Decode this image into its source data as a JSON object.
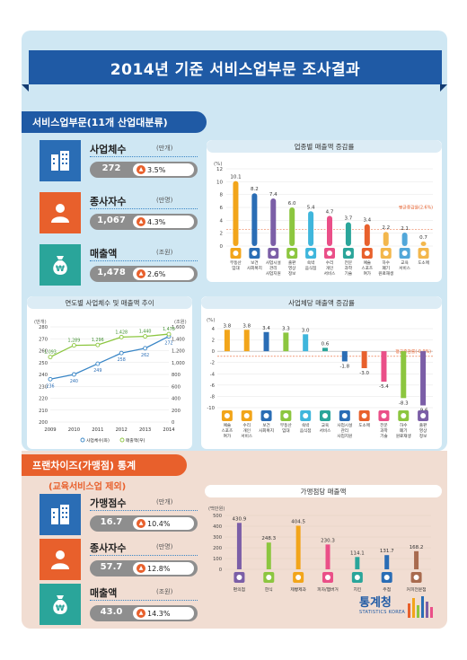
{
  "header": {
    "title": "2014년 기준 서비스업부문 조사결과"
  },
  "service_section": {
    "tab": "서비스업부문(11개 산업대분류)",
    "stats": [
      {
        "name": "사업체수",
        "unit": "(만개)",
        "value": "272",
        "change": "3.5%",
        "icon": "building-icon",
        "color": "#2a6db5"
      },
      {
        "name": "종사자수",
        "unit": "(만명)",
        "value": "1,067",
        "change": "4.3%",
        "icon": "person-icon",
        "color": "#e8602c"
      },
      {
        "name": "매출액",
        "unit": "(조원)",
        "value": "1,478",
        "change": "2.6%",
        "icon": "money-bag-icon",
        "color": "#2aa59a"
      }
    ]
  },
  "franchise_section": {
    "tab": "프랜차이즈(가맹점) 통계",
    "note": "(교육서비스업 제외)",
    "stats": [
      {
        "name": "가맹점수",
        "unit": "(만개)",
        "value": "16.7",
        "change": "10.4%",
        "icon": "building-icon",
        "color": "#2a6db5"
      },
      {
        "name": "종사자수",
        "unit": "(만명)",
        "value": "57.7",
        "change": "12.8%",
        "icon": "person-icon",
        "color": "#e8602c"
      },
      {
        "name": "매출액",
        "unit": "(조원)",
        "value": "43.0",
        "change": "14.3%",
        "icon": "money-bag-icon",
        "color": "#2aa59a"
      }
    ]
  },
  "brand": {
    "name": "통계청",
    "sub": "STATISTICS KOREA"
  },
  "chart_data": [
    {
      "type": "bar",
      "title": "업종별 매출액 증감률",
      "ylabel": "(%)",
      "ylim": [
        0,
        12
      ],
      "yticks": [
        0,
        2,
        4,
        6,
        8,
        10,
        12
      ],
      "categories": [
        "부동산 임대",
        "보건 사회복지",
        "사업시설 관리 사업지원",
        "출판 영상 정보",
        "숙박 음식점",
        "수리 개인 서비스",
        "전문 과학 기술",
        "예술 스포츠 여가",
        "하수 폐기 원료재생",
        "교육 서비스",
        "도소매"
      ],
      "values": [
        10.1,
        8.2,
        7.4,
        6.0,
        5.4,
        4.7,
        3.7,
        3.4,
        2.2,
        2.1,
        0.7
      ],
      "value_labels": [
        "10.1",
        "8.2",
        "7.4",
        "6.0",
        "5.4",
        "4.7",
        "3.7",
        "3.4",
        "2.2",
        "2.1",
        "0.7"
      ],
      "annotation": "평균증감률(2.6%)",
      "average": 2.6
    },
    {
      "type": "line",
      "title": "연도별 사업체수 및 매출액 추이",
      "x": [
        "2009",
        "2010",
        "2011",
        "2012",
        "2013",
        "2014"
      ],
      "y_left_label": "(만개)",
      "y_right_label": "(조원)",
      "y_left_lim": [
        200,
        280
      ],
      "y_left_ticks": [
        200,
        210,
        220,
        230,
        240,
        250,
        260,
        270,
        280
      ],
      "y_right_lim": [
        0,
        1600
      ],
      "y_right_ticks": [
        0,
        200,
        400,
        600,
        800,
        1000,
        1200,
        1400,
        1600
      ],
      "series": [
        {
          "name": "사업체수(좌)",
          "axis": "left",
          "color": "#3a86c6",
          "values": [
            236,
            240,
            249,
            258,
            262,
            272
          ],
          "labels": [
            "236",
            "240",
            "249",
            "258",
            "262",
            "272"
          ]
        },
        {
          "name": "매출액(우)",
          "axis": "right",
          "color": "#8cc63f",
          "values": [
            1093,
            1289,
            1296,
            1428,
            1440,
            1478
          ],
          "labels": [
            "1,093",
            "1,289",
            "1,296",
            "1,428",
            "1,440",
            "1,478"
          ]
        }
      ]
    },
    {
      "type": "bar",
      "title": "사업체당 매출액 증감률",
      "ylabel": "(%)",
      "ylim": [
        -10,
        4
      ],
      "yticks": [
        4,
        2,
        0,
        -2,
        -4,
        -6,
        -8,
        -10
      ],
      "categories": [
        "예술 스포츠 여가",
        "수리 개인 서비스",
        "보건 사회복지",
        "부동산 임대",
        "숙박 음식점",
        "교육 서비스",
        "사업시설 관리 사업지원",
        "도소매",
        "전문 과학 기술",
        "하수 폐기 원료재생",
        "출판 영상 정보"
      ],
      "values": [
        3.8,
        3.8,
        3.4,
        3.3,
        3.0,
        0.6,
        -1.8,
        -3.0,
        -5.4,
        -8.3,
        -9.6
      ],
      "value_labels": [
        "3.8",
        "3.8",
        "3.4",
        "3.3",
        "3.0",
        "0.6",
        "-1.8",
        "-3.0",
        "-5.4",
        "-8.3",
        "-9.6"
      ],
      "annotation": "평균증감률(-0.9%)",
      "average": -0.9
    },
    {
      "type": "bar",
      "title": "가맹점당 매출액",
      "ylabel": "(백만원)",
      "ylim": [
        0,
        500
      ],
      "yticks": [
        0,
        100,
        200,
        300,
        400,
        500
      ],
      "categories": [
        "편의점",
        "한식",
        "제빵제과",
        "피자/햄버거",
        "치킨",
        "주점",
        "커피전문점"
      ],
      "values": [
        430.9,
        248.3,
        404.5,
        230.3,
        114.1,
        131.7,
        168.2
      ],
      "value_labels": [
        "430.9",
        "248.3",
        "404.5",
        "230.3",
        "114.1",
        "131.7",
        "168.2"
      ]
    }
  ],
  "colors": {
    "blue": "#2a6db5",
    "orange": "#e8602c",
    "teal": "#2aa59a",
    "bar_palette_1": [
      "#f2a51a",
      "#2a6db5",
      "#7b5ea7",
      "#8cc63f",
      "#3fb6dc",
      "#ea4f88",
      "#2aa59a",
      "#e8602c",
      "#f3b74c",
      "#52a7d9",
      "#f3b74c"
    ],
    "bar_palette_2": [
      "#f2a51a",
      "#f2a51a",
      "#2a6db5",
      "#8cc63f",
      "#3fb6dc",
      "#2aa59a",
      "#2a6db5",
      "#e8602c",
      "#ea4f88",
      "#8cc63f",
      "#7b5ea7"
    ],
    "bar_palette_3": [
      "#7b5ea7",
      "#8cc63f",
      "#f2a51a",
      "#ea4f88",
      "#2aa59a",
      "#2a6db5",
      "#a86b4f"
    ]
  }
}
